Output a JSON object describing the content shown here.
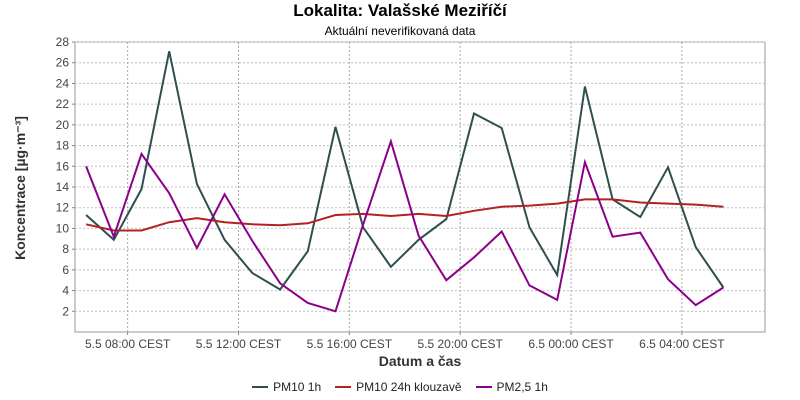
{
  "chart_data": {
    "type": "line",
    "title": "Lokalita: Valašské Meziříčí",
    "subtitle": "Aktuální neverifikovaná data",
    "xlabel": "Datum a čas",
    "ylabel": "Koncentrace [µg·m⁻³]",
    "ylim": [
      0,
      28
    ],
    "y_ticks": [
      2,
      4,
      6,
      8,
      10,
      12,
      14,
      16,
      18,
      20,
      22,
      24,
      26,
      28
    ],
    "x_ticks": [
      {
        "label": "5.5 08:00 CEST",
        "hour": 8
      },
      {
        "label": "5.5 12:00 CEST",
        "hour": 12
      },
      {
        "label": "5.5 16:00 CEST",
        "hour": 16
      },
      {
        "label": "5.5 20:00 CEST",
        "hour": 20
      },
      {
        "label": "6.5 00:00 CEST",
        "hour": 24
      },
      {
        "label": "6.5 04:00 CEST",
        "hour": 28
      }
    ],
    "x_hours": [
      6.5,
      7.5,
      8.5,
      9.5,
      10.5,
      11.5,
      12.5,
      13.5,
      14.5,
      15.5,
      16.5,
      17.5,
      18.5,
      19.5,
      20.5,
      21.5,
      22.5,
      23.5,
      24.5,
      25.5,
      26.5,
      27.5,
      28.5,
      29.5,
      30.5
    ],
    "xlim": [
      6.1,
      31.0
    ],
    "grid": true,
    "legend_position": "bottom",
    "series": [
      {
        "name": "PM10 1h",
        "color": "#2f4f4f",
        "values": [
          11.3,
          8.9,
          13.8,
          27.1,
          14.3,
          8.9,
          5.7,
          4.1,
          7.8,
          19.8,
          10.1,
          6.3,
          8.9,
          10.9,
          21.1,
          19.7,
          10.1,
          5.5,
          23.7,
          12.8,
          11.1,
          15.9,
          8.2,
          4.3,
          null
        ]
      },
      {
        "name": "PM10 24h klouzavě",
        "color": "#b22222",
        "values": [
          10.4,
          9.8,
          9.8,
          10.6,
          11.0,
          10.6,
          10.4,
          10.3,
          10.5,
          11.3,
          11.4,
          11.2,
          11.4,
          11.2,
          11.7,
          12.1,
          12.2,
          12.4,
          12.8,
          12.8,
          12.5,
          12.4,
          12.3,
          12.1,
          null
        ]
      },
      {
        "name": "PM2,5 1h",
        "color": "#8b008b",
        "values": [
          16.0,
          9.2,
          17.2,
          13.4,
          8.1,
          13.3,
          8.8,
          4.7,
          2.8,
          2.0,
          10.4,
          18.4,
          9.3,
          5.0,
          7.2,
          9.7,
          4.5,
          3.1,
          16.4,
          9.2,
          9.6,
          5.1,
          2.6,
          4.3,
          null
        ]
      }
    ]
  }
}
